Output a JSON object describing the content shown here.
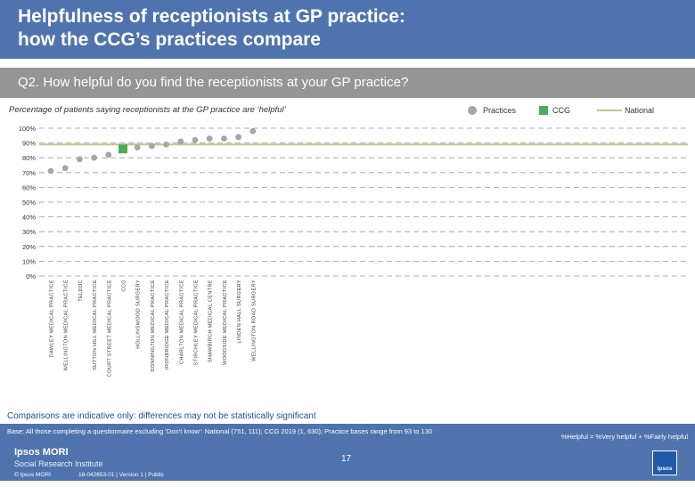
{
  "header": {
    "title": "Helpfulness of receptionists at GP practice:\nhow the CCG’s practices compare",
    "question": "Q2. How helpful do you find the receptionists at your GP practice?"
  },
  "chart_data": {
    "type": "scatter",
    "subtitle": "Percentage of patients saying receptionists at the GP practice are ‘helpful’",
    "legend": {
      "practices": "Practices",
      "ccg": "CCG",
      "national": "National",
      "placement": "top-right"
    },
    "y_ticks": [
      "0%",
      "10%",
      "20%",
      "30%",
      "40%",
      "50%",
      "60%",
      "70%",
      "80%",
      "90%",
      "100%"
    ],
    "ylim": [
      0,
      100
    ],
    "national_value": 89,
    "categories": [
      "DAWLEY MEDICAL PRACTICE",
      "WELLINGTON MEDICAL PRACTICE",
      "TELDOC",
      "SUTTON HILL MEDICAL PRACTICE",
      "COURT STREET MEDICAL PRACTICE",
      "CCG",
      "HOLLINSWOOD SURGERY",
      "DONNINGTON MEDICAL PRACTICE",
      "IRONBRIDGE MEDICAL PRACTICE",
      "CHARLTON MEDICAL PRACTICE",
      "STIRCHLEY MEDICAL PRACTICE",
      "SHAWBIRCH MEDICAL CENTRE",
      "WOODSIDE MEDICAL PRACTICE",
      "LINDEN HALL SURGERY",
      "WELLINGTON ROAD SURGERY"
    ],
    "values": [
      71,
      73,
      79,
      80,
      82,
      86,
      87,
      88,
      89,
      91,
      92,
      93,
      93,
      94,
      98
    ],
    "ccg_index": 5,
    "colors": {
      "practice": "#a6a6a6",
      "ccg": "#4cae5a",
      "national": "#c9c08a",
      "grid": "#9a9a9a"
    },
    "grid": true
  },
  "note": "Comparisons are indicative only: differences may not be statistically significant",
  "footer": {
    "base": "Base: All those completing a questionnaire excluding ‘Don’t know’: National (751, 111); CCG 2019 (1, 630); Practice bases range from 93 to 130",
    "helpful_definition": "%Helpful = %Very helpful + %Fairly helpful",
    "logo_line1": "Ipsos MORI",
    "logo_line2": "Social Research Institute",
    "copyright": "© Ipsos MORI",
    "reference": "18-042653-01 | Version 1 | Public",
    "page_number": "17",
    "corner_logo": "ipsos"
  }
}
